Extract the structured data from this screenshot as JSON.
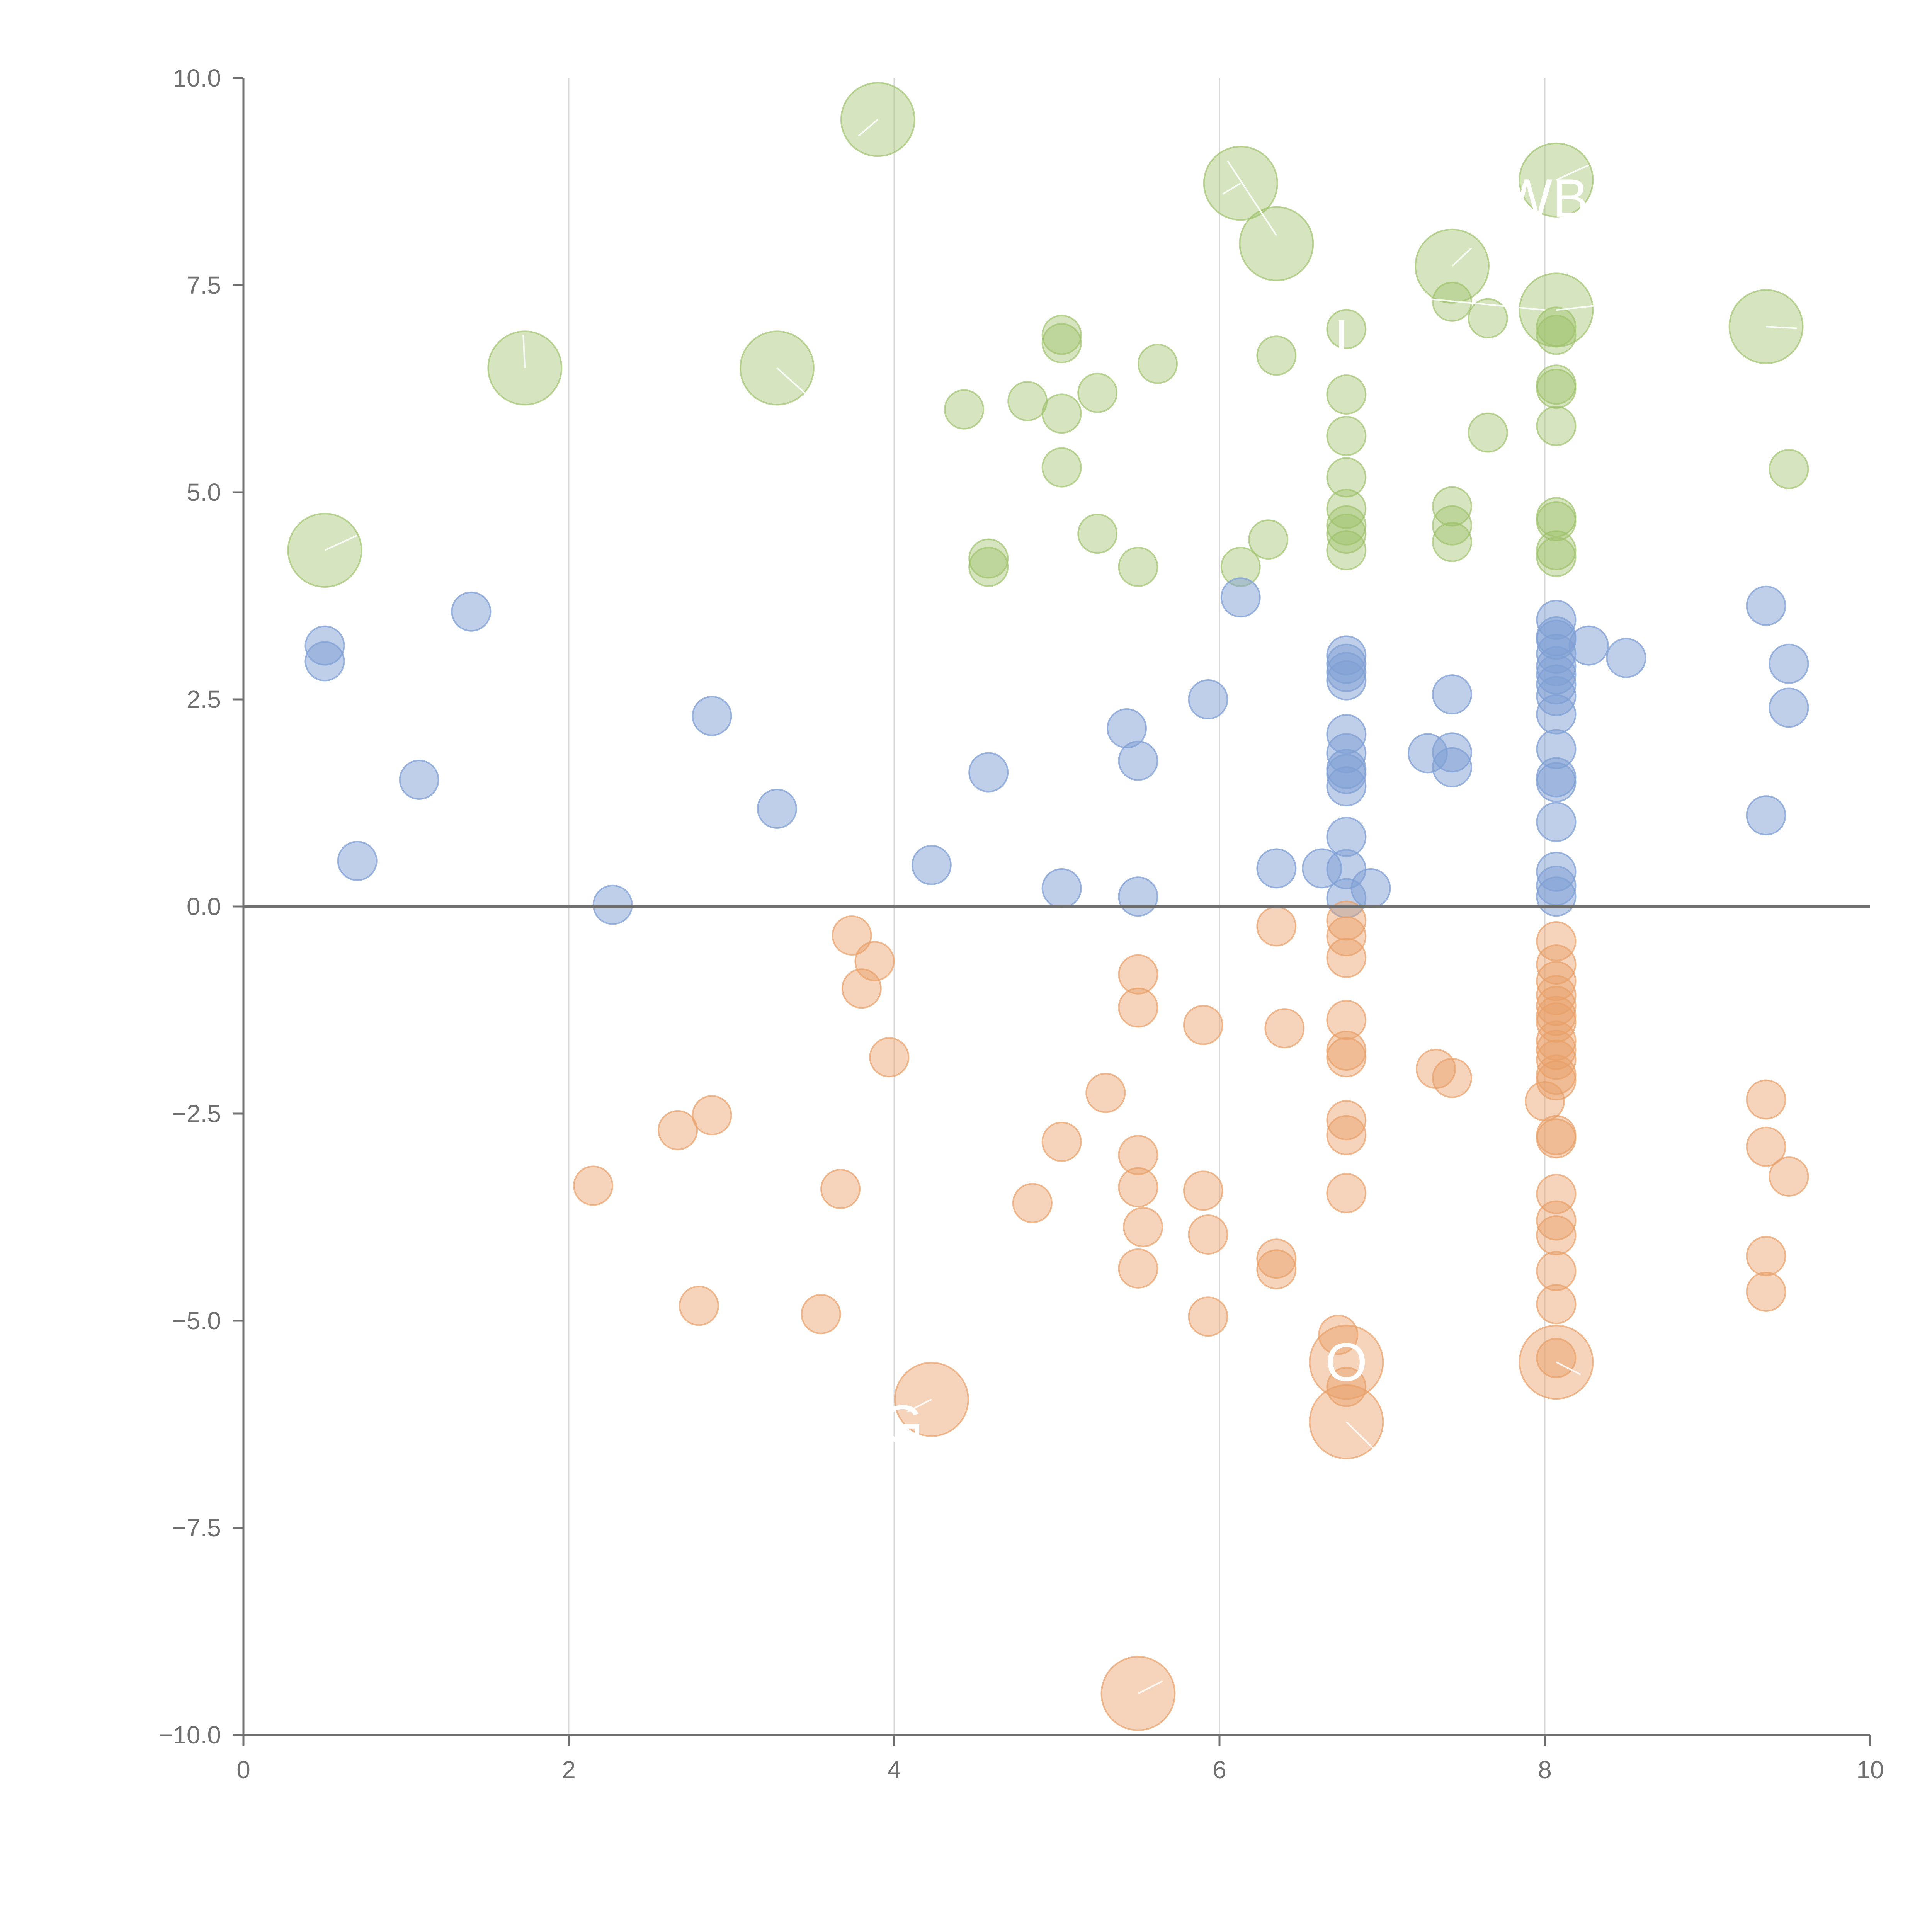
{
  "chart_data": {
    "type": "scatter",
    "title": "",
    "xlabel": "",
    "ylabel": "",
    "xlim": [
      0,
      10
    ],
    "ylim": [
      -10,
      10
    ],
    "x_ticks": [
      0,
      2,
      4,
      6,
      8,
      10
    ],
    "y_ticks": [
      10.0,
      7.5,
      5.0,
      2.5,
      0.0,
      -2.5,
      -5.0,
      -7.5,
      -10.0
    ],
    "x_tick_labels": [
      "0",
      "2",
      "4",
      "6",
      "8",
      "10"
    ],
    "y_tick_labels": [
      "10.0",
      "7.5",
      "5.0",
      "2.5",
      "0.0",
      "−2.5",
      "−5.0",
      "−7.5",
      "−10.0"
    ],
    "grid": {
      "vertical": true,
      "horizontal": false
    },
    "reference_line": {
      "y": 0
    },
    "legend": "none",
    "series": [
      {
        "color": "#9dc16a",
        "fill_opacity": 0.42,
        "points": [
          [
            3.9,
            9.5,
            2
          ],
          [
            6.13,
            8.73,
            2
          ],
          [
            6.35,
            8.0,
            2
          ],
          [
            8.07,
            8.77,
            2
          ],
          [
            7.43,
            7.73,
            2
          ],
          [
            8.07,
            7.2,
            2
          ],
          [
            9.36,
            7.0,
            2
          ],
          [
            1.73,
            6.5,
            2
          ],
          [
            3.28,
            6.5,
            2
          ],
          [
            0.5,
            4.3,
            2
          ],
          [
            5.03,
            6.9,
            1
          ],
          [
            5.03,
            6.8,
            1
          ],
          [
            4.43,
            6.0,
            1
          ],
          [
            4.82,
            6.1,
            1
          ],
          [
            5.03,
            5.95,
            1
          ],
          [
            5.25,
            6.2,
            1
          ],
          [
            5.62,
            6.55,
            1
          ],
          [
            5.03,
            5.3,
            1
          ],
          [
            5.25,
            4.5,
            1
          ],
          [
            5.5,
            4.1,
            1
          ],
          [
            4.58,
            4.2,
            1
          ],
          [
            4.58,
            4.1,
            1
          ],
          [
            6.13,
            4.1,
            1
          ],
          [
            6.3,
            4.43,
            1
          ],
          [
            6.35,
            6.65,
            1
          ],
          [
            6.78,
            6.97,
            1
          ],
          [
            6.78,
            6.18,
            1
          ],
          [
            6.78,
            5.68,
            1
          ],
          [
            6.78,
            5.18,
            1
          ],
          [
            6.78,
            4.8,
            1
          ],
          [
            6.78,
            4.6,
            1
          ],
          [
            6.78,
            4.5,
            1
          ],
          [
            6.78,
            4.3,
            1
          ],
          [
            7.43,
            7.3,
            1
          ],
          [
            7.65,
            7.1,
            1
          ],
          [
            7.65,
            5.72,
            1
          ],
          [
            7.43,
            4.83,
            1
          ],
          [
            7.43,
            4.6,
            1
          ],
          [
            7.43,
            4.4,
            1
          ],
          [
            8.07,
            7.0,
            1
          ],
          [
            8.07,
            6.9,
            1
          ],
          [
            8.07,
            6.3,
            1
          ],
          [
            8.07,
            6.25,
            1
          ],
          [
            8.07,
            5.8,
            1
          ],
          [
            8.07,
            4.7,
            1
          ],
          [
            8.07,
            4.65,
            1
          ],
          [
            8.07,
            4.3,
            1
          ],
          [
            8.07,
            4.22,
            1
          ],
          [
            9.5,
            5.28,
            1
          ]
        ]
      },
      {
        "color": "#7f9fd4",
        "fill_opacity": 0.5,
        "points": [
          [
            0.5,
            3.15,
            1
          ],
          [
            0.5,
            2.96,
            1
          ],
          [
            0.7,
            0.55,
            1
          ],
          [
            1.08,
            1.53,
            1
          ],
          [
            1.4,
            3.56,
            1
          ],
          [
            2.27,
            0.02,
            1
          ],
          [
            2.88,
            2.3,
            1
          ],
          [
            3.28,
            1.18,
            1
          ],
          [
            4.23,
            0.5,
            1
          ],
          [
            4.58,
            1.62,
            1
          ],
          [
            5.03,
            0.22,
            1
          ],
          [
            5.43,
            2.15,
            1
          ],
          [
            5.5,
            1.76,
            1
          ],
          [
            5.5,
            0.12,
            1
          ],
          [
            5.93,
            2.5,
            1
          ],
          [
            6.13,
            3.73,
            1
          ],
          [
            6.35,
            0.46,
            1
          ],
          [
            6.63,
            0.46,
            1
          ],
          [
            6.78,
            3.03,
            1
          ],
          [
            6.78,
            2.93,
            1
          ],
          [
            6.78,
            2.83,
            1
          ],
          [
            6.78,
            2.73,
            1
          ],
          [
            6.78,
            2.08,
            1
          ],
          [
            6.78,
            1.85,
            1
          ],
          [
            6.78,
            1.66,
            1
          ],
          [
            6.78,
            1.6,
            1
          ],
          [
            6.78,
            1.45,
            1
          ],
          [
            6.78,
            0.84,
            1
          ],
          [
            6.78,
            0.45,
            1
          ],
          [
            6.78,
            0.1,
            1
          ],
          [
            6.93,
            0.22,
            1
          ],
          [
            7.28,
            1.85,
            1
          ],
          [
            7.43,
            2.56,
            1
          ],
          [
            7.43,
            1.86,
            1
          ],
          [
            7.43,
            1.68,
            1
          ],
          [
            8.07,
            3.46,
            1
          ],
          [
            8.07,
            3.26,
            1
          ],
          [
            8.07,
            3.22,
            1
          ],
          [
            8.07,
            3.05,
            1
          ],
          [
            8.07,
            2.9,
            1
          ],
          [
            8.07,
            2.8,
            1
          ],
          [
            8.07,
            2.68,
            1
          ],
          [
            8.07,
            2.54,
            1
          ],
          [
            8.07,
            2.32,
            1
          ],
          [
            8.07,
            1.9,
            1
          ],
          [
            8.07,
            1.56,
            1
          ],
          [
            8.07,
            1.5,
            1
          ],
          [
            8.07,
            1.02,
            1
          ],
          [
            8.07,
            0.42,
            1
          ],
          [
            8.07,
            0.25,
            1
          ],
          [
            8.07,
            0.12,
            1
          ],
          [
            8.27,
            3.15,
            1
          ],
          [
            8.5,
            3.0,
            1
          ],
          [
            9.36,
            3.63,
            1
          ],
          [
            9.36,
            1.1,
            1
          ],
          [
            9.5,
            2.93,
            1
          ],
          [
            9.5,
            2.4,
            1
          ]
        ]
      },
      {
        "color": "#e8a068",
        "fill_opacity": 0.45,
        "points": [
          [
            4.23,
            -5.95,
            2
          ],
          [
            6.78,
            -5.5,
            2
          ],
          [
            6.78,
            -6.22,
            2
          ],
          [
            8.07,
            -5.5,
            2
          ],
          [
            5.5,
            -9.5,
            2
          ],
          [
            2.15,
            -3.37,
            1
          ],
          [
            2.67,
            -2.7,
            1
          ],
          [
            2.88,
            -2.52,
            1
          ],
          [
            2.8,
            -4.82,
            1
          ],
          [
            3.55,
            -4.92,
            1
          ],
          [
            3.67,
            -3.41,
            1
          ],
          [
            3.74,
            -0.35,
            1
          ],
          [
            3.8,
            -0.99,
            1
          ],
          [
            3.88,
            -0.66,
            1
          ],
          [
            3.97,
            -1.82,
            1
          ],
          [
            4.85,
            -3.58,
            1
          ],
          [
            5.03,
            -2.84,
            1
          ],
          [
            5.3,
            -2.25,
            1
          ],
          [
            5.5,
            -0.82,
            1
          ],
          [
            5.5,
            -1.22,
            1
          ],
          [
            5.5,
            -3.0,
            1
          ],
          [
            5.5,
            -3.39,
            1
          ],
          [
            5.5,
            -4.37,
            1
          ],
          [
            5.53,
            -3.87,
            1
          ],
          [
            5.9,
            -1.43,
            1
          ],
          [
            5.9,
            -3.43,
            1
          ],
          [
            5.93,
            -3.96,
            1
          ],
          [
            5.93,
            -4.95,
            1
          ],
          [
            6.35,
            -0.24,
            1
          ],
          [
            6.4,
            -1.47,
            1
          ],
          [
            6.35,
            -4.25,
            1
          ],
          [
            6.35,
            -4.38,
            1
          ],
          [
            6.73,
            -5.17,
            1
          ],
          [
            6.78,
            -0.17,
            1
          ],
          [
            6.78,
            -0.36,
            1
          ],
          [
            6.78,
            -0.62,
            1
          ],
          [
            6.78,
            -1.37,
            1
          ],
          [
            6.78,
            -1.74,
            1
          ],
          [
            6.78,
            -1.82,
            1
          ],
          [
            6.78,
            -2.58,
            1
          ],
          [
            6.78,
            -2.76,
            1
          ],
          [
            6.78,
            -3.46,
            1
          ],
          [
            6.78,
            -5.8,
            1
          ],
          [
            7.33,
            -1.96,
            1
          ],
          [
            7.43,
            -2.07,
            1
          ],
          [
            8.07,
            -0.42,
            1
          ],
          [
            8.07,
            -0.7,
            1
          ],
          [
            8.07,
            -0.9,
            1
          ],
          [
            8.07,
            -1.07,
            1
          ],
          [
            8.07,
            -1.2,
            1
          ],
          [
            8.07,
            -1.32,
            1
          ],
          [
            8.07,
            -1.4,
            1
          ],
          [
            8.07,
            -1.62,
            1
          ],
          [
            8.07,
            -1.73,
            1
          ],
          [
            8.07,
            -1.85,
            1
          ],
          [
            8.07,
            -2.03,
            1
          ],
          [
            8.07,
            -2.1,
            1
          ],
          [
            8.0,
            -2.35,
            1
          ],
          [
            8.07,
            -2.76,
            1
          ],
          [
            8.07,
            -2.8,
            1
          ],
          [
            8.07,
            -3.47,
            1
          ],
          [
            8.07,
            -3.79,
            1
          ],
          [
            8.07,
            -3.97,
            1
          ],
          [
            8.07,
            -4.4,
            1
          ],
          [
            8.07,
            -4.8,
            1
          ],
          [
            8.07,
            -5.45,
            1
          ],
          [
            9.36,
            -2.33,
            1
          ],
          [
            9.36,
            -2.9,
            1
          ],
          [
            9.36,
            -4.22,
            1
          ],
          [
            9.36,
            -4.65,
            1
          ],
          [
            9.5,
            -3.26,
            1
          ]
        ]
      }
    ],
    "labels": [
      {
        "text": "O",
        "x": 6.78,
        "y": -5.5,
        "color": "#ffffff"
      },
      {
        "text": "G",
        "x": 4.05,
        "y": -6.25,
        "color": "#ffffff"
      },
      {
        "text": "WB",
        "x": 8.0,
        "y": 8.55,
        "color": "#ffffff"
      },
      {
        "text": "I",
        "x": 6.75,
        "y": 6.85,
        "color": "#ffffff"
      }
    ]
  }
}
